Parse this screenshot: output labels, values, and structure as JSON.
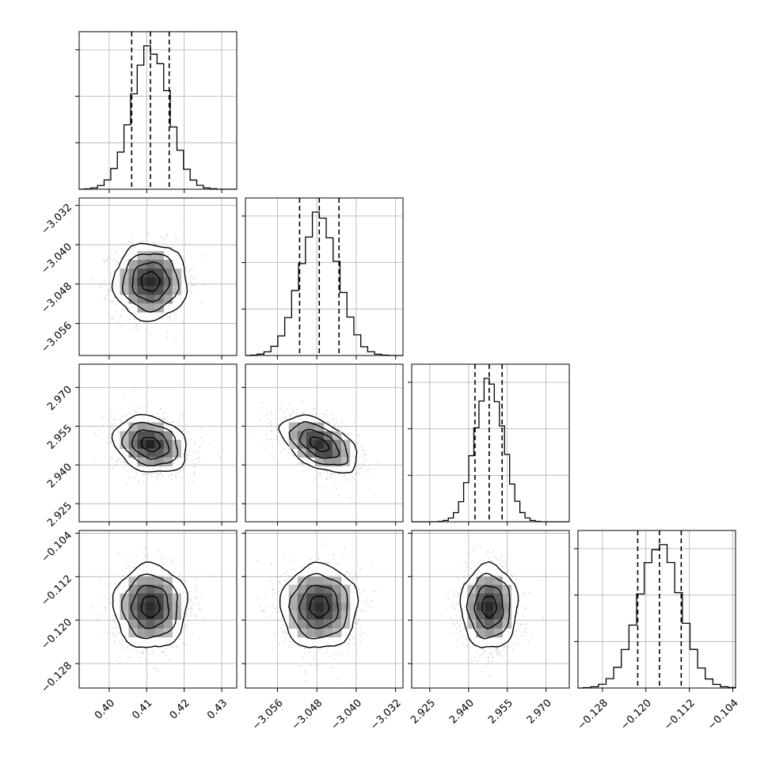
{
  "chart_data": {
    "type": "corner",
    "parameters": 4,
    "axes": [
      {
        "range": [
          0.392,
          0.434
        ],
        "ticks": [
          0.4,
          0.41,
          0.42,
          0.43
        ],
        "tick_labels": [
          "0.40",
          "0.41",
          "0.42",
          "0.43"
        ]
      },
      {
        "range": [
          -3.0625,
          -3.0305
        ],
        "ticks": [
          -3.056,
          -3.048,
          -3.04,
          -3.032
        ],
        "tick_labels": [
          "−3.056",
          "−3.048",
          "−3.040",
          "−3.032"
        ]
      },
      {
        "range": [
          2.918,
          2.979
        ],
        "ticks": [
          2.925,
          2.94,
          2.955,
          2.97
        ],
        "tick_labels": [
          "2.925",
          "2.940",
          "2.955",
          "2.970"
        ]
      },
      {
        "range": [
          -0.1325,
          -0.1035
        ],
        "ticks": [
          -0.128,
          -0.12,
          -0.112,
          -0.104
        ],
        "tick_labels": [
          "−0.128",
          "−0.120",
          "−0.112",
          "−0.104"
        ]
      }
    ],
    "distributions": [
      {
        "mean": 0.411,
        "sd": 0.0049,
        "quantiles": [
          0.406,
          0.411,
          0.416
        ]
      },
      {
        "mean": -3.0475,
        "sd": 0.0039,
        "quantiles": [
          -3.0515,
          -3.0475,
          -3.0435
        ]
      },
      {
        "mean": 2.948,
        "sd": 0.0055,
        "quantiles": [
          2.9425,
          2.948,
          2.953
        ]
      },
      {
        "mean": -0.1175,
        "sd": 0.0039,
        "quantiles": [
          -0.1215,
          -0.1175,
          -0.1135
        ]
      }
    ],
    "correlations": [
      {
        "pair": [
          1,
          0
        ],
        "rho": 0.0
      },
      {
        "pair": [
          2,
          0
        ],
        "rho": -0.2
      },
      {
        "pair": [
          2,
          1
        ],
        "rho": -0.5
      },
      {
        "pair": [
          3,
          0
        ],
        "rho": 0.0
      },
      {
        "pair": [
          3,
          1
        ],
        "rho": 0.0
      },
      {
        "pair": [
          3,
          2
        ],
        "rho": 0.0
      }
    ],
    "histogram_bins": 20,
    "quantile_lines": [
      0.16,
      0.5,
      0.84
    ],
    "contour_levels_sigma": [
      0.5,
      1.0,
      1.5,
      2.0
    ],
    "grid": true
  }
}
